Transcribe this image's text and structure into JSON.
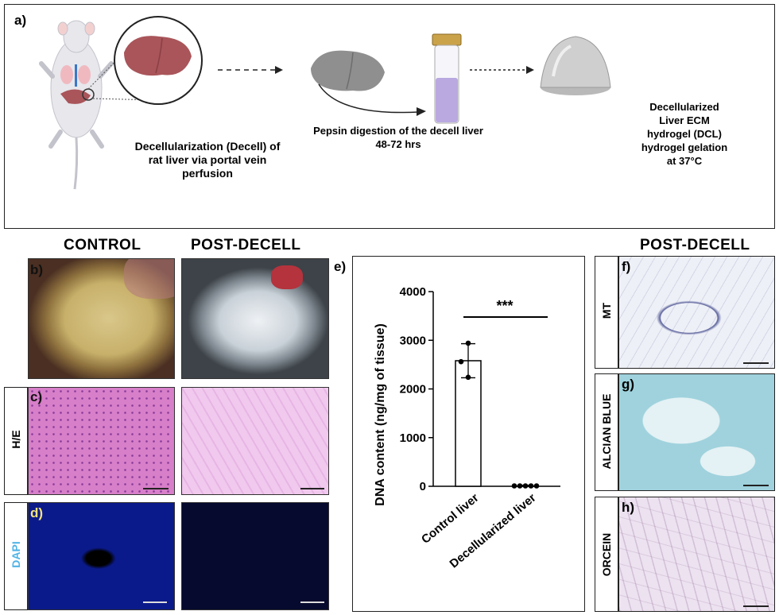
{
  "panel_a": {
    "label": "a)",
    "step1_text": [
      "Decellularization (Decell) of",
      "rat liver via portal vein",
      "perfusion"
    ],
    "step2_text": [
      "Pepsin digestion of the decell liver",
      "48-72 hrs"
    ],
    "step3_text": [
      "Decellularized",
      "Liver ECM",
      "hydrogel (DCL)",
      "hydrogel gelation",
      "at 37°C"
    ]
  },
  "headers": {
    "control": "CONTROL",
    "post_decell_left": "POST-DECELL",
    "post_decell_right": "POST-DECELL"
  },
  "panel_labels": {
    "b": "b)",
    "c": "c)",
    "d": "d)",
    "e": "e)",
    "f": "f)",
    "g": "g)",
    "h": "h)"
  },
  "row_labels": {
    "he": "H/E",
    "dapi": "DAPI",
    "mt": "MT",
    "alcian": "ALCIAN BLUE",
    "orcein": "ORCEIN"
  },
  "colors": {
    "liver": "#a9555a",
    "he_control": "#d77fc9",
    "he_decell": "#f1c9ee",
    "dapi": "#0b1a8a",
    "dapi_decell": "#050a2e",
    "dapi_label": "#4fb3e6",
    "alcian": "#9fd2dd",
    "orcein": "#ece2f0",
    "mt": "#eef0f7",
    "vial_liquid": "#b9a9e0"
  },
  "chart_data": {
    "type": "bar",
    "ylabel": "DNA content (ng/mg of tissue)",
    "ylim": [
      0,
      4000
    ],
    "yticks": [
      0,
      1000,
      2000,
      3000,
      4000
    ],
    "categories": [
      "Control liver",
      "Decellularized liver"
    ],
    "values": [
      2580,
      8
    ],
    "error_low": [
      2230,
      0
    ],
    "error_high": [
      2930,
      20
    ],
    "points": [
      [
        2940,
        2560,
        2240
      ],
      [
        8,
        8,
        8,
        8,
        8
      ]
    ],
    "significance": "***"
  }
}
